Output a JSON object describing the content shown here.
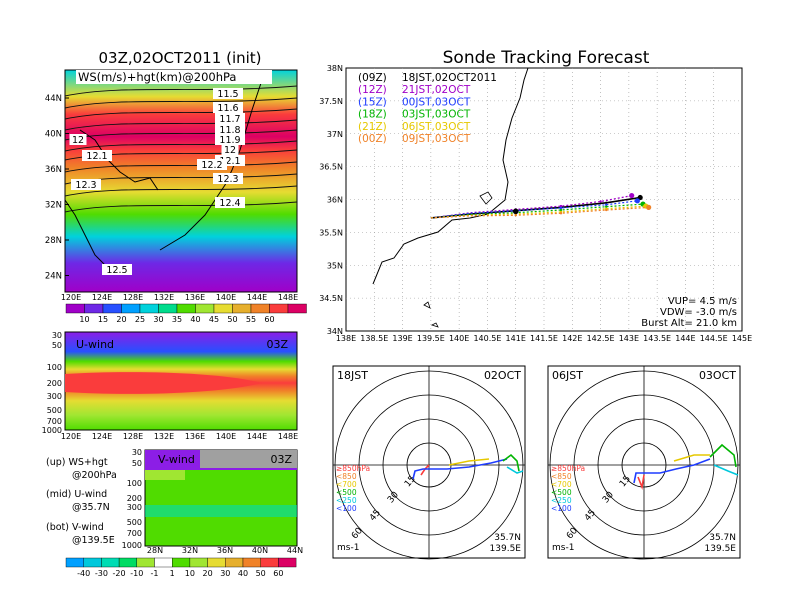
{
  "titles": {
    "left_init": "03Z,02OCT2011 (init)",
    "right": "Sonde Tracking Forecast"
  },
  "ws_panel": {
    "label": "WS(m/s)+hgt(km)@200hPa",
    "lat_ticks": [
      "44N",
      "40N",
      "36N",
      "32N",
      "28N",
      "24N"
    ],
    "lon_ticks": [
      "120E",
      "124E",
      "128E",
      "132E",
      "136E",
      "140E",
      "144E",
      "148E"
    ],
    "contour_labels": [
      "11.5",
      "11.6",
      "11.7",
      "11.8",
      "11.9",
      "12",
      "12.1",
      "12.2",
      "12.3",
      "12.4",
      "12",
      "12.1",
      "12.3",
      "12.5"
    ],
    "colorbar_ticks": [
      "10",
      "15",
      "20",
      "25",
      "30",
      "35",
      "40",
      "45",
      "50",
      "55",
      "60"
    ],
    "colorbar_colors": [
      "#a000c8",
      "#6e28e6",
      "#2850ff",
      "#00a0ff",
      "#00d2dc",
      "#00dc8c",
      "#50dc00",
      "#a0e632",
      "#e6dc32",
      "#e6af2d",
      "#f08228",
      "#fa3c3c",
      "#dc0064"
    ]
  },
  "u_panel": {
    "label": "U-wind",
    "time": "03Z",
    "p_ticks": [
      "30",
      "50",
      "100",
      "200",
      "300",
      "500",
      "700",
      "1000"
    ],
    "lon_ticks": [
      "120E",
      "124E",
      "128E",
      "132E",
      "136E",
      "140E",
      "144E",
      "148E"
    ]
  },
  "v_panel": {
    "label": "V-wind",
    "time": "03Z",
    "p_ticks": [
      "30",
      "50",
      "100",
      "200",
      "300",
      "500",
      "700",
      "1000"
    ],
    "lat_ticks": [
      "28N",
      "32N",
      "36N",
      "40N",
      "44N"
    ],
    "colorbar_ticks": [
      "-40",
      "-30",
      "-20",
      "-10",
      "-1",
      "1",
      "10",
      "20",
      "30",
      "40",
      "50",
      "60"
    ],
    "colorbar_colors": [
      "#00a0ff",
      "#00c8dc",
      "#00dcb4",
      "#00dc64",
      "#a0e632",
      "#ffffff",
      "#50dc00",
      "#a0e632",
      "#e6dc32",
      "#e6af2d",
      "#f08228",
      "#fa3c3c",
      "#dc0064"
    ]
  },
  "legend_notes": [
    {
      "top": "(up) WS+hgt",
      "bot": "@200hPa"
    },
    {
      "top": "(mid) U-wind",
      "bot": "@35.7N"
    },
    {
      "top": "(bot) V-wind",
      "bot": "@139.5E"
    }
  ],
  "track_panel": {
    "lat_ticks": [
      "38N",
      "37.5N",
      "37N",
      "36.5N",
      "36N",
      "35.5N",
      "35N",
      "34.5N",
      "34N"
    ],
    "lon_ticks": [
      "138E",
      "138.5E",
      "139E",
      "139.5E",
      "140E",
      "140.5E",
      "141E",
      "141.5E",
      "142E",
      "142.5E",
      "143E",
      "143.5E",
      "144E",
      "144.5E",
      "145E"
    ],
    "legend": [
      {
        "code": "(09Z)",
        "time": "18JST,02OCT2011",
        "color": "#000000"
      },
      {
        "code": "(12Z)",
        "time": "21JST,02OCT",
        "color": "#a000c8"
      },
      {
        "code": "(15Z)",
        "time": "00JST,03OCT",
        "color": "#1e3cff"
      },
      {
        "code": "(18Z)",
        "time": "03JST,03OCT",
        "color": "#00b400"
      },
      {
        "code": "(21Z)",
        "time": "06JST,03OCT",
        "color": "#e6c800"
      },
      {
        "code": "(00Z)",
        "time": "09JST,03OCT",
        "color": "#f08228"
      }
    ],
    "params": [
      "VUP= 4.5 m/s",
      "VDW= -3.0 m/s",
      "Burst Alt= 21.0 km"
    ]
  },
  "hodo_left": {
    "time": "18JST",
    "date": "02OCT",
    "ring_labels": [
      "15",
      "30",
      "45",
      "60"
    ],
    "levels": [
      {
        "label": "≥850hPa",
        "color": "#fa3c3c"
      },
      {
        "label": "<850",
        "color": "#f08228"
      },
      {
        "label": "<700",
        "color": "#e6c800"
      },
      {
        "label": "<500",
        "color": "#00b400"
      },
      {
        "label": "<250",
        "color": "#00c8dc"
      },
      {
        "label": "<100",
        "color": "#1e3cff"
      }
    ],
    "unit": "ms-1",
    "loc_lat": "35.7N",
    "loc_lon": "139.5E"
  },
  "hodo_right": {
    "time": "06JST",
    "date": "03OCT",
    "ring_labels": [
      "15",
      "30",
      "45",
      "60"
    ],
    "unit": "ms-1",
    "loc_lat": "35.7N",
    "loc_lon": "139.5E"
  },
  "chart_data": [
    {
      "type": "heatmap",
      "title": "03Z,02OCT2011 (init)",
      "label": "WS(m/s)+hgt(km)@200hPa",
      "xlim": [
        "120E",
        "150E"
      ],
      "ylim": [
        "22N",
        "47N"
      ],
      "x_ticks": [
        "120E",
        "124E",
        "128E",
        "132E",
        "136E",
        "140E",
        "144E",
        "148E"
      ],
      "y_ticks": [
        "24N",
        "28N",
        "32N",
        "36N",
        "40N",
        "44N"
      ],
      "colorbar": [
        10,
        15,
        20,
        25,
        30,
        35,
        40,
        45,
        50,
        55,
        60
      ],
      "height_contours_km": [
        11.5,
        11.6,
        11.7,
        11.8,
        11.9,
        12,
        12.1,
        12.2,
        12.3,
        12.4,
        12.5
      ]
    },
    {
      "type": "heatmap",
      "label": "U-wind",
      "time": "03Z",
      "x_ticks": [
        "120E",
        "124E",
        "128E",
        "132E",
        "136E",
        "140E",
        "144E",
        "148E"
      ],
      "y_ticks_hPa": [
        30,
        50,
        100,
        200,
        300,
        500,
        700,
        1000
      ]
    },
    {
      "type": "heatmap",
      "label": "V-wind",
      "time": "03Z",
      "x_ticks": [
        "28N",
        "32N",
        "36N",
        "40N",
        "44N"
      ],
      "y_ticks_hPa": [
        30,
        50,
        100,
        200,
        300,
        500,
        700,
        1000
      ],
      "colorbar": [
        -40,
        -30,
        -20,
        -10,
        -1,
        1,
        10,
        20,
        30,
        40,
        50,
        60
      ]
    },
    {
      "type": "line",
      "title": "Sonde Tracking Forecast",
      "xlim": [
        138,
        145
      ],
      "ylim": [
        34,
        38
      ],
      "series": [
        {
          "name": "(09Z) 18JST,02OCT2011",
          "x": [
            139.5,
            140.2,
            141.0,
            141.8,
            142.6,
            143.2
          ],
          "y": [
            35.72,
            35.78,
            35.83,
            35.88,
            35.95,
            36.03
          ]
        },
        {
          "name": "(12Z) 21JST,02OCT",
          "x": [
            139.5,
            140.2,
            141.0,
            141.8,
            142.5,
            143.05
          ],
          "y": [
            35.72,
            35.8,
            35.85,
            35.9,
            35.97,
            36.06
          ]
        },
        {
          "name": "(15Z) 00JST,03OCT",
          "x": [
            139.5,
            140.2,
            141.0,
            141.8,
            142.6,
            143.15
          ],
          "y": [
            35.72,
            35.79,
            35.83,
            35.87,
            35.92,
            35.98
          ]
        },
        {
          "name": "(18Z) 03JST,03OCT",
          "x": [
            139.5,
            140.2,
            141.0,
            141.8,
            142.6,
            143.25
          ],
          "y": [
            35.72,
            35.77,
            35.8,
            35.84,
            35.89,
            35.93
          ]
        },
        {
          "name": "(21Z) 06JST,03OCT",
          "x": [
            139.5,
            140.2,
            141.0,
            141.8,
            142.6,
            143.3
          ],
          "y": [
            35.72,
            35.76,
            35.78,
            35.81,
            35.86,
            35.9
          ]
        },
        {
          "name": "(00Z) 09JST,03OCT",
          "x": [
            139.5,
            140.2,
            141.0,
            141.8,
            142.6,
            143.35
          ],
          "y": [
            35.72,
            35.75,
            35.76,
            35.79,
            35.84,
            35.88
          ]
        }
      ],
      "annotations": [
        "VUP= 4.5 m/s",
        "VDW= -3.0 m/s",
        "Burst Alt= 21.0 km"
      ]
    }
  ]
}
